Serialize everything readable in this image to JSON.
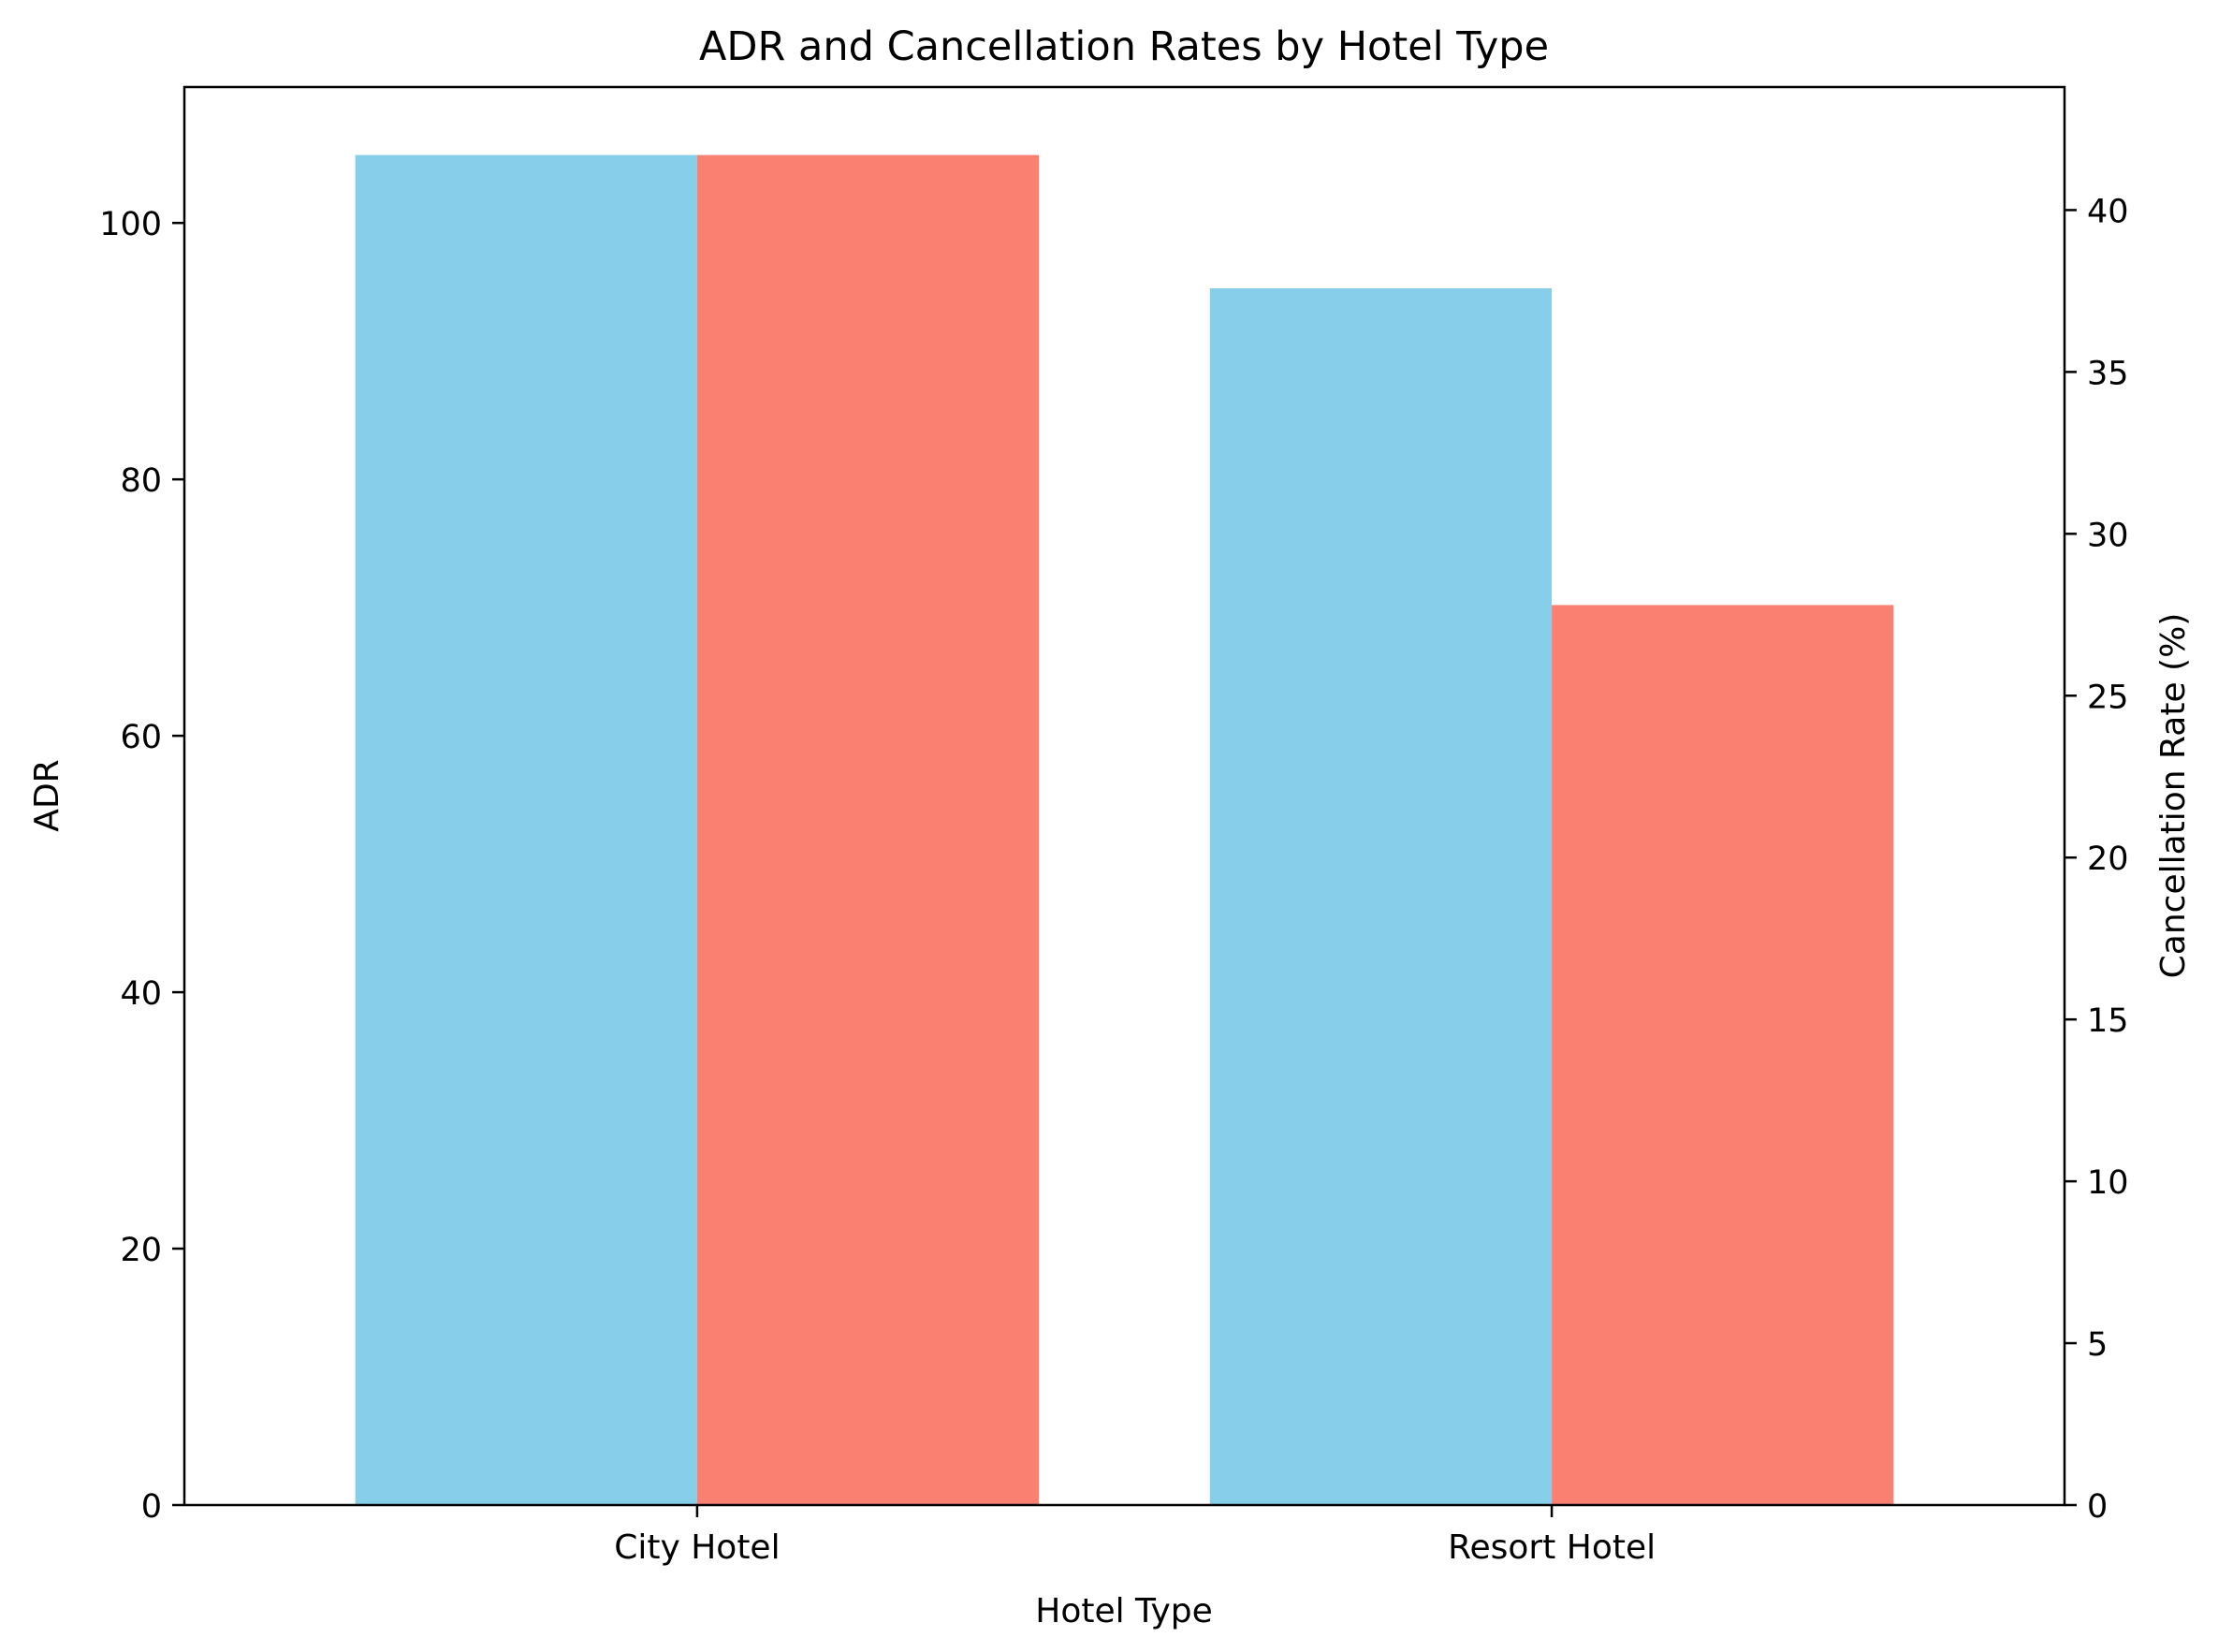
{
  "chart_data": {
    "type": "bar",
    "title": "ADR and Cancellation Rates by Hotel Type",
    "xlabel": "Hotel Type",
    "ylabel": "ADR",
    "y2label": "Cancellation Rate (%)",
    "categories": [
      "City Hotel",
      "Resort Hotel"
    ],
    "series": [
      {
        "values": [
          105.3,
          94.9
        ],
        "axis": "left",
        "color": "#87CEEB"
      },
      {
        "values": [
          41.7,
          27.8
        ],
        "axis": "right",
        "color": "#FA8072"
      }
    ],
    "ylim": [
      0,
      110.6
    ],
    "y2lim": [
      0,
      43.8
    ],
    "yticks": [
      0,
      20,
      40,
      60,
      80,
      100
    ],
    "y2ticks": [
      0,
      5,
      10,
      15,
      20,
      25,
      30,
      35,
      40
    ],
    "grid": false,
    "legend": "none"
  }
}
